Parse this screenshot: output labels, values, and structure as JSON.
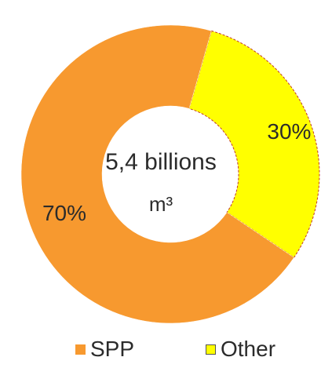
{
  "chart_data": {
    "type": "pie",
    "variant": "donut",
    "categories": [
      "SPP",
      "Other"
    ],
    "values": [
      70,
      30
    ],
    "value_labels": [
      "70%",
      "30%"
    ],
    "colors": [
      "#F7992F",
      "#FFFF00"
    ],
    "center_label": [
      "5,4 billions",
      "m³"
    ],
    "legend": {
      "placement": "bottom",
      "entries": [
        {
          "label": "SPP",
          "color": "#F7992F"
        },
        {
          "label": "Other",
          "color": "#FFFF00"
        }
      ]
    }
  }
}
